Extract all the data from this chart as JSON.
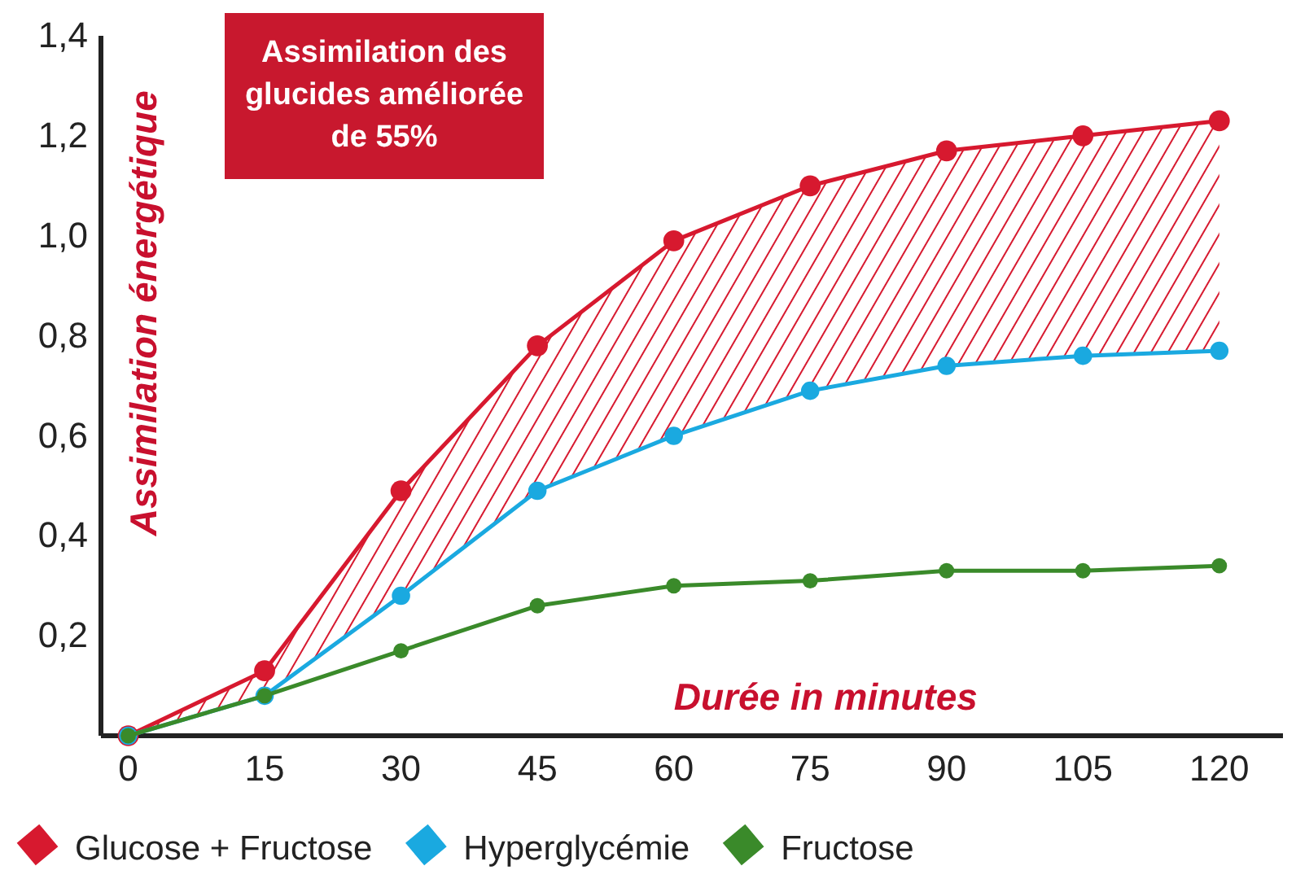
{
  "chart_data": {
    "type": "line",
    "xlabel": "Durée in minutes",
    "ylabel": "Assimilation énergétique",
    "annotations": [
      "Assimilation des glucides améliorée de 55%"
    ],
    "x": [
      0,
      15,
      30,
      45,
      60,
      75,
      90,
      105,
      120
    ],
    "series": [
      {
        "name": "Glucose + Fructose",
        "color": "#d7192f",
        "values": [
          0,
          0.13,
          0.49,
          0.78,
          0.99,
          1.1,
          1.17,
          1.2,
          1.23
        ],
        "lower": [
          0,
          0.08,
          0.28,
          0.49,
          0.6,
          0.69,
          0.74,
          0.76,
          0.77
        ],
        "upper": [
          0,
          0.13,
          0.49,
          0.78,
          0.99,
          1.1,
          1.17,
          1.2,
          1.23
        ]
      },
      {
        "name": "Hyperglycémie",
        "color": "#1aa9e0",
        "values": [
          0,
          0.08,
          0.28,
          0.49,
          0.6,
          0.69,
          0.74,
          0.76,
          0.77
        ]
      },
      {
        "name": "Fructose",
        "color": "#3a8a2a",
        "values": [
          0,
          0.08,
          0.17,
          0.26,
          0.3,
          0.31,
          0.33,
          0.33,
          0.34
        ]
      }
    ],
    "xlim": [
      -3,
      127
    ],
    "xticks": [
      0,
      15,
      30,
      45,
      60,
      75,
      90,
      105,
      120
    ],
    "ylim": [
      0,
      1.4
    ],
    "yticks": [
      {
        "value": 0.2,
        "label": "0,2"
      },
      {
        "value": 0.4,
        "label": "0,4"
      },
      {
        "value": 0.6,
        "label": "0,6"
      },
      {
        "value": 0.8,
        "label": "0,8"
      },
      {
        "value": 1.0,
        "label": "1,0"
      },
      {
        "value": 1.2,
        "label": "1,2"
      },
      {
        "value": 1.4,
        "label": "1,4"
      }
    ],
    "grid": false,
    "legend": "bottom",
    "marker": "circle",
    "line_style": "solid"
  }
}
